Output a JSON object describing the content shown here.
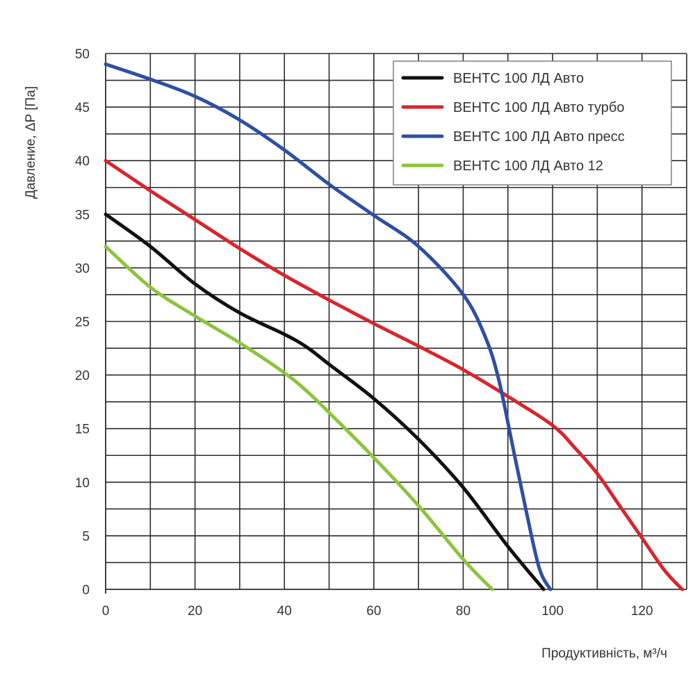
{
  "chart_data": {
    "type": "line",
    "xlabel": "Продуктивність, м³/ч",
    "ylabel": "Давление, ΔP [Па]",
    "xlim": [
      0,
      130
    ],
    "ylim": [
      0,
      50
    ],
    "x_ticks": [
      0,
      20,
      40,
      60,
      80,
      100,
      120
    ],
    "y_ticks": [
      0,
      5,
      10,
      15,
      20,
      25,
      30,
      35,
      40,
      45,
      50
    ],
    "grid": true,
    "legend_position": "top-right",
    "series": [
      {
        "name": "ВЕНТС 100 ЛД Авто",
        "color": "#111111",
        "x": [
          0,
          10,
          20,
          30,
          40,
          45,
          50,
          60,
          70,
          80,
          90,
          98
        ],
        "y": [
          35,
          32,
          28.5,
          25.8,
          23.8,
          22.6,
          21,
          17.8,
          14,
          9.5,
          4,
          0
        ]
      },
      {
        "name": "ВЕНТС 100 ЛД Авто турбо",
        "color": "#d7262e",
        "x": [
          0,
          10,
          20,
          30,
          40,
          50,
          60,
          70,
          80,
          90,
          100,
          105,
          110,
          115,
          120,
          125,
          129
        ],
        "y": [
          40,
          37.2,
          34.5,
          31.8,
          29.3,
          27,
          24.8,
          22.7,
          20.5,
          18,
          15.3,
          13.2,
          10.8,
          7.8,
          4.8,
          1.8,
          0
        ]
      },
      {
        "name": "ВЕНТС 100 ЛД Авто пресс",
        "color": "#2e4fa3",
        "x": [
          0,
          10,
          20,
          30,
          40,
          50,
          60,
          70,
          80,
          85,
          88,
          91,
          94,
          97,
          99.5
        ],
        "y": [
          49,
          47.6,
          46,
          43.8,
          41,
          37.8,
          34.9,
          32,
          27.5,
          23.5,
          19.5,
          13.5,
          7.5,
          2,
          0
        ]
      },
      {
        "name": "ВЕНТС 100 ЛД Авто 12",
        "color": "#8cc43c",
        "x": [
          0,
          10,
          20,
          30,
          40,
          45,
          50,
          60,
          70,
          80,
          86.5
        ],
        "y": [
          32,
          28.2,
          25.5,
          23,
          20.2,
          18.5,
          16.5,
          12.3,
          7.8,
          2.8,
          0
        ]
      }
    ]
  }
}
